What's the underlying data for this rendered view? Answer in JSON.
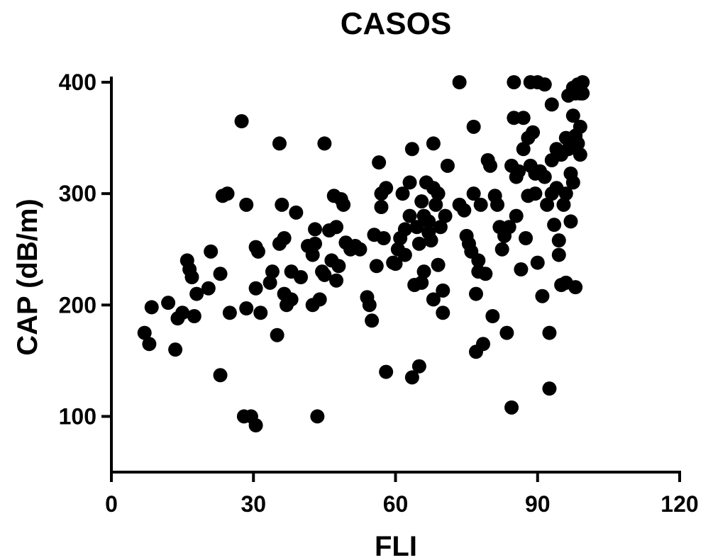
{
  "chart_data": {
    "type": "scatter",
    "title": "CASOS",
    "xlabel": "FLI",
    "ylabel": "CAP (dB/m)",
    "xlim": [
      0,
      120
    ],
    "ylim": [
      50,
      400
    ],
    "xticks": [
      0,
      30,
      60,
      90,
      120
    ],
    "yticks": [
      100,
      200,
      300,
      400
    ],
    "grid": false,
    "legend": "none",
    "marker_color": "#000000",
    "series": [
      {
        "points": [
          [
            7,
            175
          ],
          [
            8,
            165
          ],
          [
            8.5,
            198
          ],
          [
            12,
            202
          ],
          [
            13.5,
            160
          ],
          [
            14,
            188
          ],
          [
            15,
            193
          ],
          [
            16,
            240
          ],
          [
            16.5,
            232
          ],
          [
            17,
            225
          ],
          [
            17.5,
            190
          ],
          [
            18,
            210
          ],
          [
            20.5,
            215
          ],
          [
            21,
            248
          ],
          [
            23,
            137
          ],
          [
            23,
            228
          ],
          [
            23.5,
            298
          ],
          [
            24.5,
            300
          ],
          [
            25,
            193
          ],
          [
            27.5,
            365
          ],
          [
            28,
            100
          ],
          [
            28.5,
            197
          ],
          [
            28.5,
            290
          ],
          [
            29.5,
            100
          ],
          [
            30.5,
            92
          ],
          [
            30.5,
            252
          ],
          [
            30.5,
            215
          ],
          [
            31,
            248
          ],
          [
            31.5,
            193
          ],
          [
            33.5,
            220
          ],
          [
            34,
            230
          ],
          [
            35,
            173
          ],
          [
            35.5,
            255
          ],
          [
            35.5,
            345
          ],
          [
            36,
            290
          ],
          [
            36.5,
            260
          ],
          [
            36.5,
            210
          ],
          [
            37,
            200
          ],
          [
            38,
            205
          ],
          [
            38,
            230
          ],
          [
            39,
            283
          ],
          [
            40,
            225
          ],
          [
            41.5,
            253
          ],
          [
            42.5,
            245
          ],
          [
            42.5,
            200
          ],
          [
            43,
            255
          ],
          [
            43,
            268
          ],
          [
            43.5,
            100
          ],
          [
            44,
            205
          ],
          [
            44.5,
            230
          ],
          [
            45,
            227
          ],
          [
            45,
            345
          ],
          [
            46,
            267
          ],
          [
            46.5,
            240
          ],
          [
            47,
            298
          ],
          [
            47.5,
            270
          ],
          [
            47.5,
            222
          ],
          [
            48,
            235
          ],
          [
            48.5,
            295
          ],
          [
            49,
            290
          ],
          [
            49.5,
            256
          ],
          [
            50.5,
            250
          ],
          [
            51.5,
            253
          ],
          [
            52.5,
            250
          ],
          [
            54,
            207
          ],
          [
            54.5,
            200
          ],
          [
            55,
            186
          ],
          [
            55.5,
            263
          ],
          [
            56,
            235
          ],
          [
            56.5,
            328
          ],
          [
            57,
            300
          ],
          [
            57,
            288
          ],
          [
            57.5,
            260
          ],
          [
            58,
            305
          ],
          [
            58,
            140
          ],
          [
            59.5,
            238
          ],
          [
            60,
            237
          ],
          [
            60.5,
            250
          ],
          [
            61,
            260
          ],
          [
            61.5,
            300
          ],
          [
            62,
            268
          ],
          [
            62,
            245
          ],
          [
            63,
            310
          ],
          [
            63,
            280
          ],
          [
            63.5,
            340
          ],
          [
            63.5,
            135
          ],
          [
            64,
            218
          ],
          [
            64.5,
            270
          ],
          [
            65,
            145
          ],
          [
            65,
            255
          ],
          [
            65.5,
            293
          ],
          [
            65.5,
            220
          ],
          [
            66,
            230
          ],
          [
            66,
            280
          ],
          [
            66.5,
            310
          ],
          [
            67,
            275
          ],
          [
            67,
            265
          ],
          [
            67.5,
            258
          ],
          [
            68,
            305
          ],
          [
            68,
            345
          ],
          [
            68,
            205
          ],
          [
            68.5,
            290
          ],
          [
            69,
            236
          ],
          [
            69,
            300
          ],
          [
            69.5,
            270
          ],
          [
            70,
            193
          ],
          [
            70,
            213
          ],
          [
            70.5,
            280
          ],
          [
            71,
            325
          ],
          [
            73.5,
            400
          ],
          [
            73.5,
            290
          ],
          [
            74.5,
            285
          ],
          [
            75,
            262
          ],
          [
            75.5,
            255
          ],
          [
            76,
            248
          ],
          [
            76.5,
            300
          ],
          [
            76.5,
            360
          ],
          [
            77,
            210
          ],
          [
            77,
            158
          ],
          [
            77.5,
            240
          ],
          [
            77.5,
            230
          ],
          [
            78,
            290
          ],
          [
            78.5,
            165
          ],
          [
            79,
            228
          ],
          [
            79.5,
            330
          ],
          [
            80,
            325
          ],
          [
            80.5,
            190
          ],
          [
            81,
            298
          ],
          [
            81.5,
            290
          ],
          [
            82,
            270
          ],
          [
            82.5,
            250
          ],
          [
            83,
            262
          ],
          [
            83.5,
            175
          ],
          [
            84,
            270
          ],
          [
            84.5,
            108
          ],
          [
            84.5,
            325
          ],
          [
            85,
            400
          ],
          [
            85,
            368
          ],
          [
            85.5,
            280
          ],
          [
            85.5,
            315
          ],
          [
            86,
            320
          ],
          [
            86.5,
            232
          ],
          [
            87,
            340
          ],
          [
            87,
            368
          ],
          [
            87.5,
            260
          ],
          [
            88,
            350
          ],
          [
            88,
            298
          ],
          [
            88.5,
            400
          ],
          [
            88.5,
            325
          ],
          [
            89,
            355
          ],
          [
            89.5,
            300
          ],
          [
            89.5,
            318
          ],
          [
            90,
            400
          ],
          [
            90,
            238
          ],
          [
            90.5,
            320
          ],
          [
            91,
            208
          ],
          [
            91.5,
            398
          ],
          [
            91.5,
            315
          ],
          [
            92,
            290
          ],
          [
            92.5,
            175
          ],
          [
            92.5,
            125
          ],
          [
            93,
            380
          ],
          [
            93,
            300
          ],
          [
            93,
            330
          ],
          [
            93.5,
            272
          ],
          [
            94,
            340
          ],
          [
            94,
            305
          ],
          [
            94.5,
            258
          ],
          [
            94.5,
            245
          ],
          [
            95,
            218
          ],
          [
            95,
            335
          ],
          [
            95.5,
            290
          ],
          [
            96,
            220
          ],
          [
            96,
            350
          ],
          [
            96,
            300
          ],
          [
            96.5,
            388
          ],
          [
            96.5,
            340
          ],
          [
            97,
            275
          ],
          [
            97,
            318
          ],
          [
            97.5,
            395
          ],
          [
            97.5,
            370
          ],
          [
            97.5,
            310
          ],
          [
            98,
            390
          ],
          [
            98,
            352
          ],
          [
            98,
            216
          ],
          [
            98.5,
            398
          ],
          [
            98.5,
            345
          ],
          [
            99,
            390
          ],
          [
            99,
            360
          ],
          [
            99,
            335
          ],
          [
            99.5,
            400
          ],
          [
            99.5,
            390
          ]
        ]
      }
    ]
  }
}
